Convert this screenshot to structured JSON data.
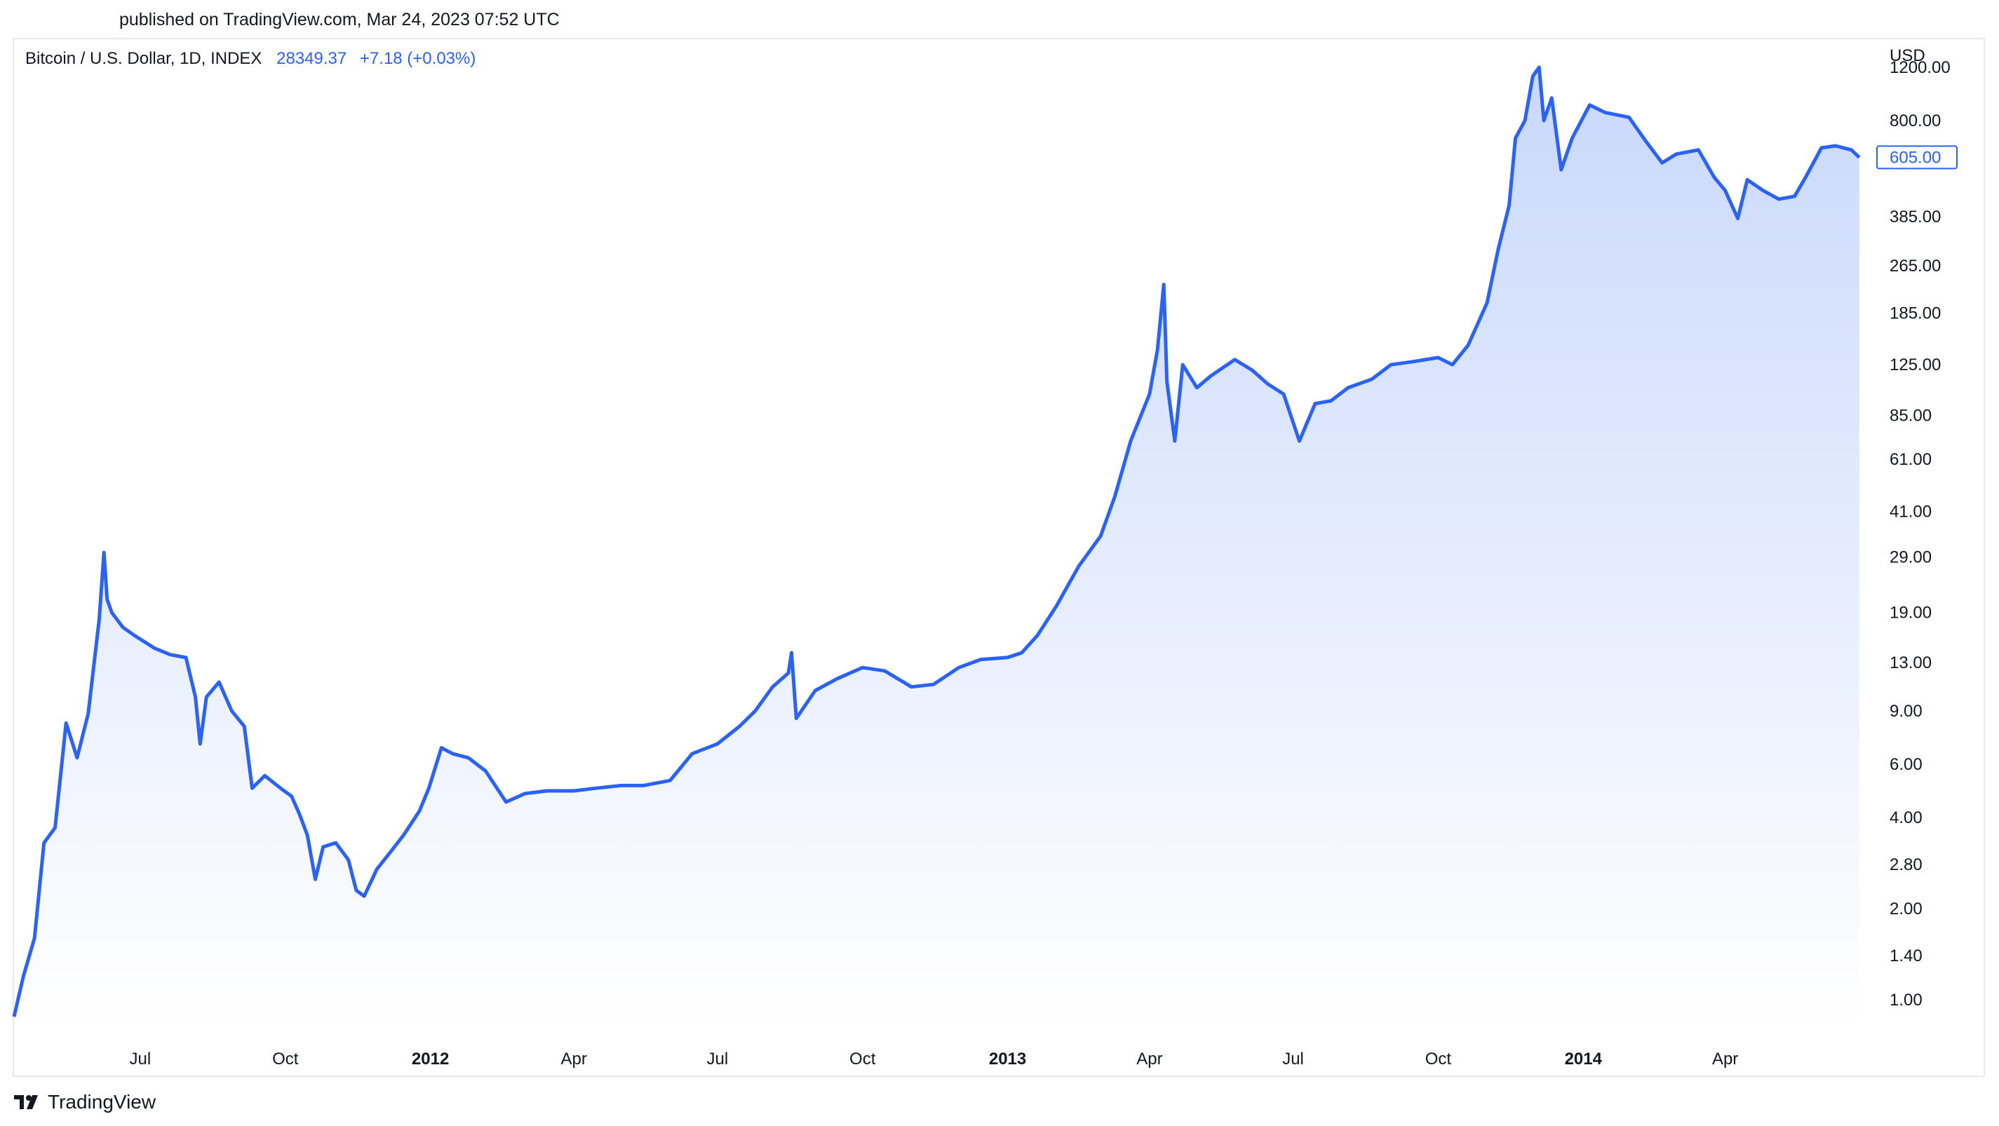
{
  "header": {
    "published": "published on TradingView.com, Mar 24, 2023 07:52 UTC"
  },
  "legend": {
    "symbol": "Bitcoin / U.S. Dollar, 1D, INDEX",
    "price": "28349.37",
    "change": "+7.18 (+0.03%)"
  },
  "footer": {
    "brand": "TradingView"
  },
  "colors": {
    "line": "#2962ff",
    "fill_top": "#c9d8fb",
    "fill_bottom": "#ffffff"
  },
  "chart_data": {
    "type": "area",
    "title": "",
    "ylabel": "USD",
    "yscale": "log",
    "ylim": [
      0.8,
      1500
    ],
    "xlim": [
      "2011-04-12",
      "2014-07-08"
    ],
    "last_price_label": "605.00",
    "y_ticks": [
      1200,
      800,
      605,
      385,
      265,
      185,
      125,
      85,
      61,
      41,
      29,
      19,
      13,
      9,
      6,
      4,
      2.8,
      2,
      1.4,
      1
    ],
    "y_tick_labels": [
      "1200.00",
      "800.00",
      "",
      "385.00",
      "265.00",
      "185.00",
      "125.00",
      "85.00",
      "61.00",
      "41.00",
      "29.00",
      "19.00",
      "13.00",
      "9.00",
      "6.00",
      "4.00",
      "2.80",
      "2.00",
      "1.40",
      "1.00"
    ],
    "x_ticks": [
      {
        "date": "2011-07-01",
        "label": "Jul",
        "bold": false
      },
      {
        "date": "2011-10-01",
        "label": "Oct",
        "bold": false
      },
      {
        "date": "2012-01-01",
        "label": "2012",
        "bold": true
      },
      {
        "date": "2012-04-01",
        "label": "Apr",
        "bold": false
      },
      {
        "date": "2012-07-01",
        "label": "Jul",
        "bold": false
      },
      {
        "date": "2012-10-01",
        "label": "Oct",
        "bold": false
      },
      {
        "date": "2013-01-01",
        "label": "2013",
        "bold": true
      },
      {
        "date": "2013-04-01",
        "label": "Apr",
        "bold": false
      },
      {
        "date": "2013-07-01",
        "label": "Jul",
        "bold": false
      },
      {
        "date": "2013-10-01",
        "label": "Oct",
        "bold": false
      },
      {
        "date": "2014-01-01",
        "label": "2014",
        "bold": true
      },
      {
        "date": "2014-04-01",
        "label": "Apr",
        "bold": false
      }
    ],
    "series": [
      {
        "values": [
          [
            "2011-04-12",
            0.88
          ],
          [
            "2011-04-18",
            1.2
          ],
          [
            "2011-04-25",
            1.6
          ],
          [
            "2011-05-01",
            3.3
          ],
          [
            "2011-05-08",
            3.7
          ],
          [
            "2011-05-15",
            8.2
          ],
          [
            "2011-05-22",
            6.3
          ],
          [
            "2011-05-29",
            8.8
          ],
          [
            "2011-06-05",
            18.0
          ],
          [
            "2011-06-08",
            30.0
          ],
          [
            "2011-06-10",
            21.0
          ],
          [
            "2011-06-13",
            19.0
          ],
          [
            "2011-06-20",
            17.0
          ],
          [
            "2011-06-27",
            16.0
          ],
          [
            "2011-07-10",
            14.5
          ],
          [
            "2011-07-20",
            13.8
          ],
          [
            "2011-07-30",
            13.5
          ],
          [
            "2011-08-05",
            10.0
          ],
          [
            "2011-08-08",
            7.0
          ],
          [
            "2011-08-12",
            10.0
          ],
          [
            "2011-08-20",
            11.2
          ],
          [
            "2011-08-28",
            9.0
          ],
          [
            "2011-09-05",
            8.0
          ],
          [
            "2011-09-10",
            5.0
          ],
          [
            "2011-09-18",
            5.5
          ],
          [
            "2011-09-28",
            5.0
          ],
          [
            "2011-10-05",
            4.7
          ],
          [
            "2011-10-10",
            4.1
          ],
          [
            "2011-10-15",
            3.5
          ],
          [
            "2011-10-20",
            2.5
          ],
          [
            "2011-10-25",
            3.2
          ],
          [
            "2011-11-02",
            3.3
          ],
          [
            "2011-11-10",
            2.9
          ],
          [
            "2011-11-15",
            2.3
          ],
          [
            "2011-11-20",
            2.2
          ],
          [
            "2011-11-28",
            2.7
          ],
          [
            "2011-12-05",
            3.0
          ],
          [
            "2011-12-15",
            3.5
          ],
          [
            "2011-12-25",
            4.2
          ],
          [
            "2011-12-31",
            5.0
          ],
          [
            "2012-01-08",
            6.8
          ],
          [
            "2012-01-15",
            6.5
          ],
          [
            "2012-01-25",
            6.3
          ],
          [
            "2012-02-05",
            5.7
          ],
          [
            "2012-02-18",
            4.5
          ],
          [
            "2012-03-01",
            4.8
          ],
          [
            "2012-03-15",
            4.9
          ],
          [
            "2012-04-01",
            4.9
          ],
          [
            "2012-04-15",
            5.0
          ],
          [
            "2012-05-01",
            5.1
          ],
          [
            "2012-05-15",
            5.1
          ],
          [
            "2012-06-01",
            5.3
          ],
          [
            "2012-06-15",
            6.5
          ],
          [
            "2012-07-01",
            7.0
          ],
          [
            "2012-07-15",
            8.0
          ],
          [
            "2012-07-25",
            9.0
          ],
          [
            "2012-08-05",
            10.8
          ],
          [
            "2012-08-15",
            12.0
          ],
          [
            "2012-08-17",
            14.0
          ],
          [
            "2012-08-20",
            8.5
          ],
          [
            "2012-09-01",
            10.5
          ],
          [
            "2012-09-15",
            11.5
          ],
          [
            "2012-10-01",
            12.5
          ],
          [
            "2012-10-15",
            12.2
          ],
          [
            "2012-11-01",
            10.8
          ],
          [
            "2012-11-15",
            11.0
          ],
          [
            "2012-12-01",
            12.5
          ],
          [
            "2012-12-15",
            13.3
          ],
          [
            "2013-01-01",
            13.5
          ],
          [
            "2013-01-10",
            14.0
          ],
          [
            "2013-01-20",
            16.0
          ],
          [
            "2013-02-01",
            20.0
          ],
          [
            "2013-02-15",
            27.0
          ],
          [
            "2013-03-01",
            34.0
          ],
          [
            "2013-03-10",
            46.0
          ],
          [
            "2013-03-20",
            70.0
          ],
          [
            "2013-04-01",
            100.0
          ],
          [
            "2013-04-06",
            140.0
          ],
          [
            "2013-04-10",
            230.0
          ],
          [
            "2013-04-12",
            110.0
          ],
          [
            "2013-04-17",
            70.0
          ],
          [
            "2013-04-22",
            125.0
          ],
          [
            "2013-05-01",
            105.0
          ],
          [
            "2013-05-10",
            115.0
          ],
          [
            "2013-05-25",
            130.0
          ],
          [
            "2013-06-05",
            120.0
          ],
          [
            "2013-06-15",
            108.0
          ],
          [
            "2013-06-25",
            100.0
          ],
          [
            "2013-07-05",
            70.0
          ],
          [
            "2013-07-15",
            93.0
          ],
          [
            "2013-07-25",
            95.0
          ],
          [
            "2013-08-05",
            105.0
          ],
          [
            "2013-08-20",
            112.0
          ],
          [
            "2013-09-01",
            125.0
          ],
          [
            "2013-09-15",
            128.0
          ],
          [
            "2013-10-01",
            132.0
          ],
          [
            "2013-10-10",
            125.0
          ],
          [
            "2013-10-20",
            145.0
          ],
          [
            "2013-11-01",
            200.0
          ],
          [
            "2013-11-08",
            300.0
          ],
          [
            "2013-11-15",
            420.0
          ],
          [
            "2013-11-19",
            700.0
          ],
          [
            "2013-11-25",
            800.0
          ],
          [
            "2013-11-30",
            1120.0
          ],
          [
            "2013-12-04",
            1200.0
          ],
          [
            "2013-12-07",
            800.0
          ],
          [
            "2013-12-12",
            950.0
          ],
          [
            "2013-12-18",
            550.0
          ],
          [
            "2013-12-25",
            700.0
          ],
          [
            "2014-01-05",
            900.0
          ],
          [
            "2014-01-15",
            850.0
          ],
          [
            "2014-01-30",
            820.0
          ],
          [
            "2014-02-10",
            680.0
          ],
          [
            "2014-02-20",
            580.0
          ],
          [
            "2014-03-01",
            620.0
          ],
          [
            "2014-03-15",
            640.0
          ],
          [
            "2014-03-25",
            520.0
          ],
          [
            "2014-04-01",
            470.0
          ],
          [
            "2014-04-09",
            380.0
          ],
          [
            "2014-04-15",
            510.0
          ],
          [
            "2014-04-25",
            470.0
          ],
          [
            "2014-05-05",
            440.0
          ],
          [
            "2014-05-15",
            450.0
          ],
          [
            "2014-05-22",
            520.0
          ],
          [
            "2014-06-01",
            650.0
          ],
          [
            "2014-06-10",
            660.0
          ],
          [
            "2014-06-20",
            640.0
          ],
          [
            "2014-06-25",
            605.0
          ]
        ]
      }
    ]
  }
}
